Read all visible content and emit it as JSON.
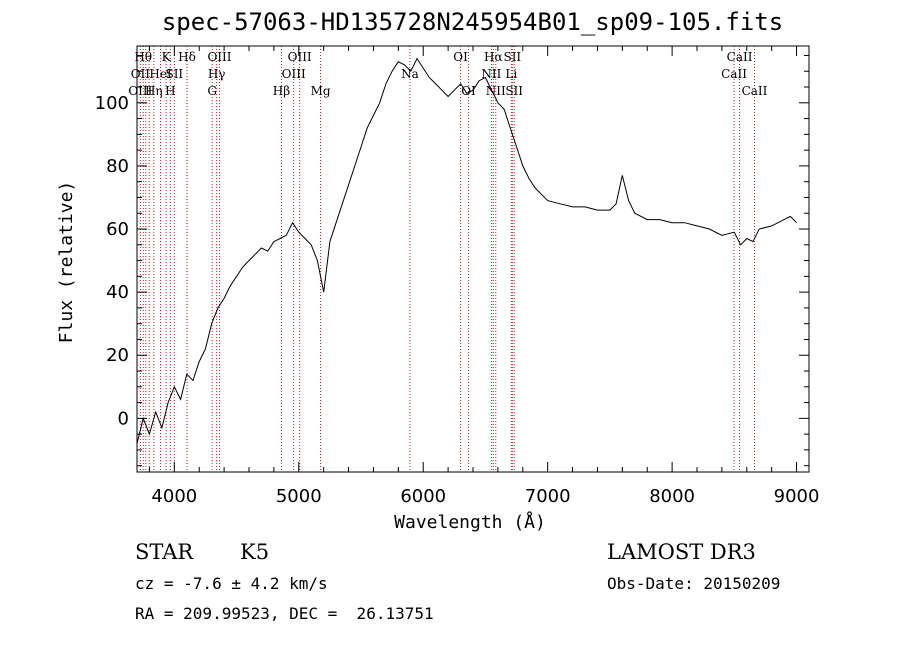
{
  "chart_data": {
    "type": "line",
    "title": "spec-57063-HD135728N245954B01_sp09-105.fits",
    "xlabel": "Wavelength (Å)",
    "ylabel": "Flux (relative)",
    "xlim": [
      3700,
      9100
    ],
    "ylim": [
      -17,
      118
    ],
    "xticks": [
      4000,
      5000,
      6000,
      7000,
      8000,
      9000
    ],
    "yticks": [
      0,
      20,
      40,
      60,
      80,
      100
    ],
    "series": [
      {
        "name": "spectrum",
        "x": [
          3700,
          3750,
          3800,
          3850,
          3900,
          3950,
          4000,
          4050,
          4100,
          4150,
          4200,
          4250,
          4300,
          4350,
          4400,
          4450,
          4500,
          4550,
          4600,
          4650,
          4700,
          4750,
          4800,
          4850,
          4900,
          4950,
          5000,
          5050,
          5100,
          5150,
          5200,
          5250,
          5300,
          5350,
          5400,
          5450,
          5500,
          5550,
          5600,
          5650,
          5700,
          5750,
          5800,
          5850,
          5900,
          5950,
          6000,
          6050,
          6100,
          6150,
          6200,
          6250,
          6300,
          6350,
          6400,
          6450,
          6500,
          6550,
          6600,
          6650,
          6700,
          6750,
          6800,
          6850,
          6900,
          6950,
          7000,
          7100,
          7200,
          7300,
          7400,
          7500,
          7550,
          7600,
          7650,
          7700,
          7800,
          7900,
          8000,
          8100,
          8200,
          8300,
          8400,
          8500,
          8550,
          8600,
          8650,
          8700,
          8800,
          8900,
          8950,
          9000
        ],
        "values": [
          -8,
          0,
          -5,
          2,
          -3,
          5,
          10,
          6,
          14,
          12,
          18,
          22,
          30,
          35,
          38,
          42,
          45,
          48,
          50,
          52,
          54,
          53,
          56,
          57,
          58,
          62,
          59,
          57,
          55,
          50,
          40,
          56,
          62,
          68,
          74,
          80,
          86,
          92,
          96,
          100,
          106,
          110,
          113,
          112,
          110,
          114,
          111,
          108,
          106,
          104,
          102,
          104,
          106,
          103,
          104,
          107,
          108,
          104,
          100,
          98,
          92,
          86,
          80,
          76,
          73,
          71,
          69,
          68,
          67,
          67,
          66,
          66,
          68,
          77,
          69,
          65,
          63,
          63,
          62,
          62,
          61,
          60,
          58,
          59,
          55,
          57,
          56,
          60,
          61,
          63,
          64,
          62
        ]
      }
    ],
    "line_labels": [
      {
        "wl": 3750,
        "text": "Hθ",
        "row": 1
      },
      {
        "wl": 3727,
        "text": "OII",
        "row": 2
      },
      {
        "wl": 3727,
        "text": "OIII",
        "row": 3
      },
      {
        "wl": 3835,
        "text": "Hη",
        "row": 3
      },
      {
        "wl": 3889,
        "text": "HeI",
        "row": 2
      },
      {
        "wl": 3934,
        "text": "K",
        "row": 1
      },
      {
        "wl": 3968,
        "text": "H",
        "row": 3
      },
      {
        "wl": 4000,
        "text": "SII",
        "row": 2
      },
      {
        "wl": 4102,
        "text": "Hδ",
        "row": 1
      },
      {
        "wl": 4363,
        "text": "OIII",
        "row": 1
      },
      {
        "wl": 4340,
        "text": "Hγ",
        "row": 2
      },
      {
        "wl": 4304,
        "text": "G",
        "row": 3
      },
      {
        "wl": 4861,
        "text": "Hβ",
        "row": 3
      },
      {
        "wl": 5007,
        "text": "OIII",
        "row": 1
      },
      {
        "wl": 4959,
        "text": "OIII",
        "row": 2
      },
      {
        "wl": 5175,
        "text": "Mg",
        "row": 3
      },
      {
        "wl": 5893,
        "text": "Na",
        "row": 2
      },
      {
        "wl": 6300,
        "text": "OI",
        "row": 1
      },
      {
        "wl": 6364,
        "text": "OI",
        "row": 3
      },
      {
        "wl": 6563,
        "text": "Hα",
        "row": 1
      },
      {
        "wl": 6548,
        "text": "NII",
        "row": 2
      },
      {
        "wl": 6583,
        "text": "NII",
        "row": 3
      },
      {
        "wl": 6716,
        "text": "SII",
        "row": 1
      },
      {
        "wl": 6708,
        "text": "Li",
        "row": 2
      },
      {
        "wl": 6731,
        "text": "SII",
        "row": 3
      },
      {
        "wl": 8542,
        "text": "CaII",
        "row": 1
      },
      {
        "wl": 8498,
        "text": "CaII",
        "row": 2
      },
      {
        "wl": 8662,
        "text": "CaII",
        "row": 3
      }
    ],
    "line_marker_wl": [
      3727,
      3750,
      3771,
      3798,
      3835,
      3889,
      3934,
      3968,
      4000,
      4102,
      4304,
      4340,
      4363,
      4861,
      4959,
      5007,
      5175,
      5893,
      6300,
      6364,
      6548,
      6563,
      6583,
      6708,
      6716,
      6731,
      8498,
      8542,
      8662
    ]
  },
  "info": {
    "object_type": "STAR",
    "spectral_class": "K5",
    "survey": "LAMOST DR3",
    "cz": "cz = -7.6 ± 4.2 km/s",
    "obs_date": "Obs-Date: 20150209",
    "coords": "RA = 209.99523, DEC =  26.13751"
  }
}
